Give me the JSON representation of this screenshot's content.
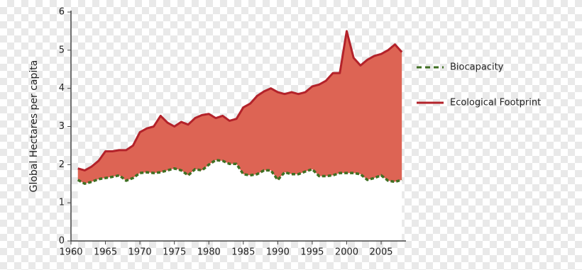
{
  "chart_data": {
    "type": "line",
    "y_label": "Global Hectares per capita",
    "x": [
      1961,
      1962,
      1963,
      1964,
      1965,
      1966,
      1967,
      1968,
      1969,
      1970,
      1971,
      1972,
      1973,
      1974,
      1975,
      1976,
      1977,
      1978,
      1979,
      1980,
      1981,
      1982,
      1983,
      1984,
      1985,
      1986,
      1987,
      1988,
      1989,
      1990,
      1991,
      1992,
      1993,
      1994,
      1995,
      1996,
      1997,
      1998,
      1999,
      2000,
      2001,
      2002,
      2003,
      2004,
      2005,
      2006,
      2007,
      2008
    ],
    "series": [
      {
        "name": "Biocapacity",
        "color": "#3f6f22",
        "dashed": true,
        "values": [
          1.6,
          1.5,
          1.55,
          1.62,
          1.65,
          1.68,
          1.72,
          1.58,
          1.65,
          1.78,
          1.8,
          1.78,
          1.8,
          1.85,
          1.9,
          1.85,
          1.72,
          1.88,
          1.85,
          2.0,
          2.12,
          2.1,
          2.02,
          2.02,
          1.75,
          1.72,
          1.75,
          1.85,
          1.85,
          1.6,
          1.8,
          1.75,
          1.75,
          1.82,
          1.88,
          1.7,
          1.7,
          1.72,
          1.78,
          1.78,
          1.78,
          1.75,
          1.6,
          1.65,
          1.72,
          1.58,
          1.55,
          1.6
        ]
      },
      {
        "name": "Ecological Footprint",
        "color": "#b3222a",
        "dashed": false,
        "values": [
          1.9,
          1.85,
          1.95,
          2.1,
          2.35,
          2.35,
          2.38,
          2.38,
          2.5,
          2.85,
          2.95,
          3.0,
          3.28,
          3.1,
          3.0,
          3.12,
          3.05,
          3.22,
          3.3,
          3.33,
          3.22,
          3.28,
          3.15,
          3.2,
          3.5,
          3.6,
          3.8,
          3.92,
          4.0,
          3.9,
          3.85,
          3.9,
          3.85,
          3.9,
          4.05,
          4.1,
          4.2,
          4.4,
          4.4,
          5.5,
          4.8,
          4.6,
          4.75,
          4.85,
          4.9,
          5.0,
          5.15,
          4.95
        ]
      }
    ],
    "fill_between_color": "#dd6454",
    "xlim": [
      1960,
      2008.6
    ],
    "xticks": [
      1960,
      1965,
      1970,
      1975,
      1980,
      1985,
      1990,
      1995,
      2000,
      2005
    ],
    "ylim": [
      0,
      6
    ],
    "yticks": [
      0,
      1,
      2,
      3,
      4,
      5,
      6
    ],
    "legend": "right"
  }
}
